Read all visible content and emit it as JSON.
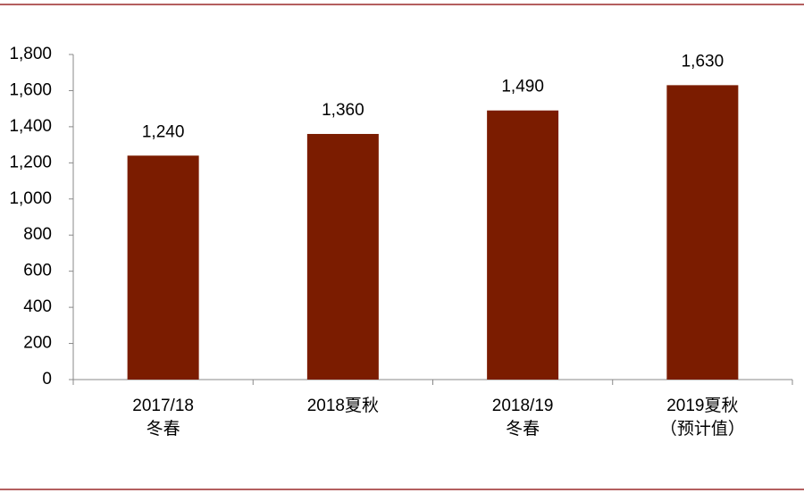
{
  "chart_data": {
    "type": "bar",
    "categories": [
      [
        "2017/18",
        "冬春"
      ],
      [
        "2018夏秋"
      ],
      [
        "2018/19",
        "冬春"
      ],
      [
        "2019夏秋",
        "（预计值）"
      ]
    ],
    "values": [
      1240,
      1360,
      1490,
      1630
    ],
    "value_labels": [
      "1,240",
      "1,360",
      "1,490",
      "1,630"
    ],
    "color": "#7b1c00",
    "ylim": [
      0,
      1800
    ],
    "yticks": [
      0,
      200,
      400,
      600,
      800,
      {
        "value": 1000,
        "label": "1,000"
      },
      {
        "value": 1200,
        "label": "1,200"
      },
      {
        "value": 1400,
        "label": "1,400"
      },
      {
        "value": 1600,
        "label": "1,600"
      },
      {
        "value": 1800,
        "label": "1,800"
      }
    ],
    "grid": false
  }
}
